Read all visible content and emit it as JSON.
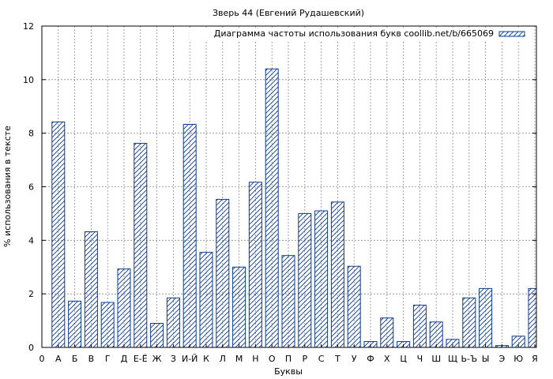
{
  "chart_data": {
    "type": "bar",
    "title": "Зверь 44 (Евгений Рудашевский)",
    "xlabel": "Буквы",
    "ylabel": "% использования в тексте",
    "legend": {
      "label": "Диаграмма частоты использования букв coollib.net/b/665069",
      "position": "top-right"
    },
    "ylim": [
      0,
      12
    ],
    "yticks": [
      0,
      2,
      4,
      6,
      8,
      10,
      12
    ],
    "grid": true,
    "bar_color": "#0a3d91",
    "categories": [
      "0",
      "А",
      "Б",
      "В",
      "Г",
      "Д",
      "Е-Ё",
      "Ж",
      "З",
      "И-Й",
      "К",
      "Л",
      "М",
      "Н",
      "О",
      "П",
      "Р",
      "С",
      "Т",
      "У",
      "Ф",
      "Х",
      "Ц",
      "Ч",
      "Ш",
      "Щ",
      "Ь-Ъ",
      "Ы",
      "Э",
      "Ю",
      "Я"
    ],
    "values": [
      0,
      8.42,
      1.73,
      4.32,
      1.68,
      2.93,
      7.62,
      0.9,
      1.85,
      8.33,
      3.55,
      5.53,
      3.0,
      6.17,
      10.4,
      3.43,
      5.0,
      5.1,
      5.43,
      3.03,
      0.22,
      1.1,
      0.22,
      1.58,
      0.95,
      0.3,
      1.85,
      2.2,
      0.07,
      0.42,
      2.2
    ]
  }
}
